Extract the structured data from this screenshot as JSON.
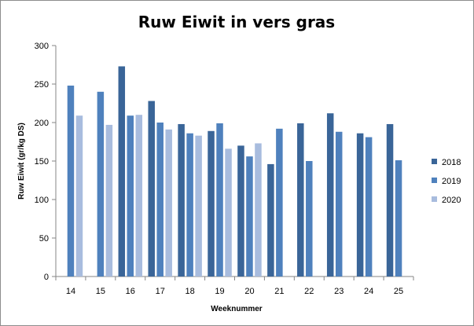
{
  "chart_data": {
    "type": "bar",
    "title": "Ruw Eiwit in vers gras",
    "xlabel": "Weeknummer",
    "ylabel": "Ruw Eiwit (gr/kg DS)",
    "ylim": [
      0,
      300
    ],
    "yticks": [
      0,
      50,
      100,
      150,
      200,
      250,
      300
    ],
    "categories": [
      "14",
      "15",
      "16",
      "17",
      "18",
      "19",
      "20",
      "21",
      "22",
      "23",
      "24",
      "25"
    ],
    "grid": false,
    "legend_position": "right",
    "series": [
      {
        "name": "2018",
        "color": "#3a6598",
        "values": [
          null,
          null,
          273,
          228,
          198,
          189,
          170,
          146,
          199,
          212,
          186,
          198
        ]
      },
      {
        "name": "2019",
        "color": "#4f81bd",
        "values": [
          248,
          240,
          209,
          200,
          186,
          199,
          156,
          192,
          150,
          188,
          181,
          151
        ]
      },
      {
        "name": "2020",
        "color": "#a8bcde",
        "values": [
          209,
          197,
          210,
          191,
          183,
          166,
          173,
          null,
          null,
          null,
          null,
          null
        ]
      }
    ]
  }
}
